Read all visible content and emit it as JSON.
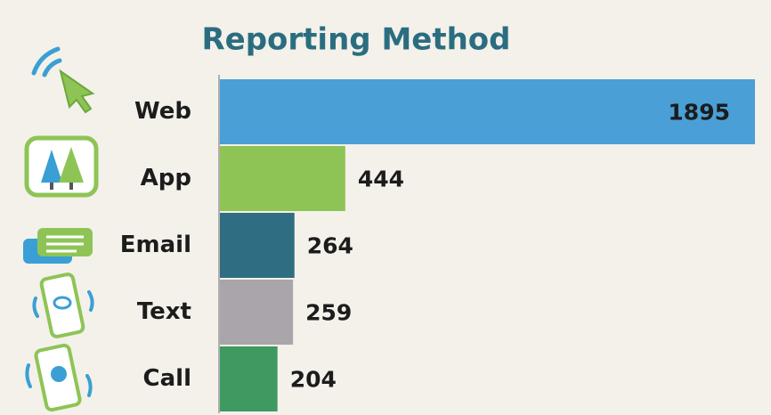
{
  "chart_data": {
    "type": "hbar",
    "title": "Reporting Method",
    "categories": [
      "Web",
      "App",
      "Email",
      "Text",
      "Call"
    ],
    "values": [
      1895,
      444,
      264,
      259,
      204
    ],
    "colors": [
      "#4a9fd6",
      "#8ec455",
      "#2f6e82",
      "#a9a5aa",
      "#3e9a60"
    ]
  }
}
